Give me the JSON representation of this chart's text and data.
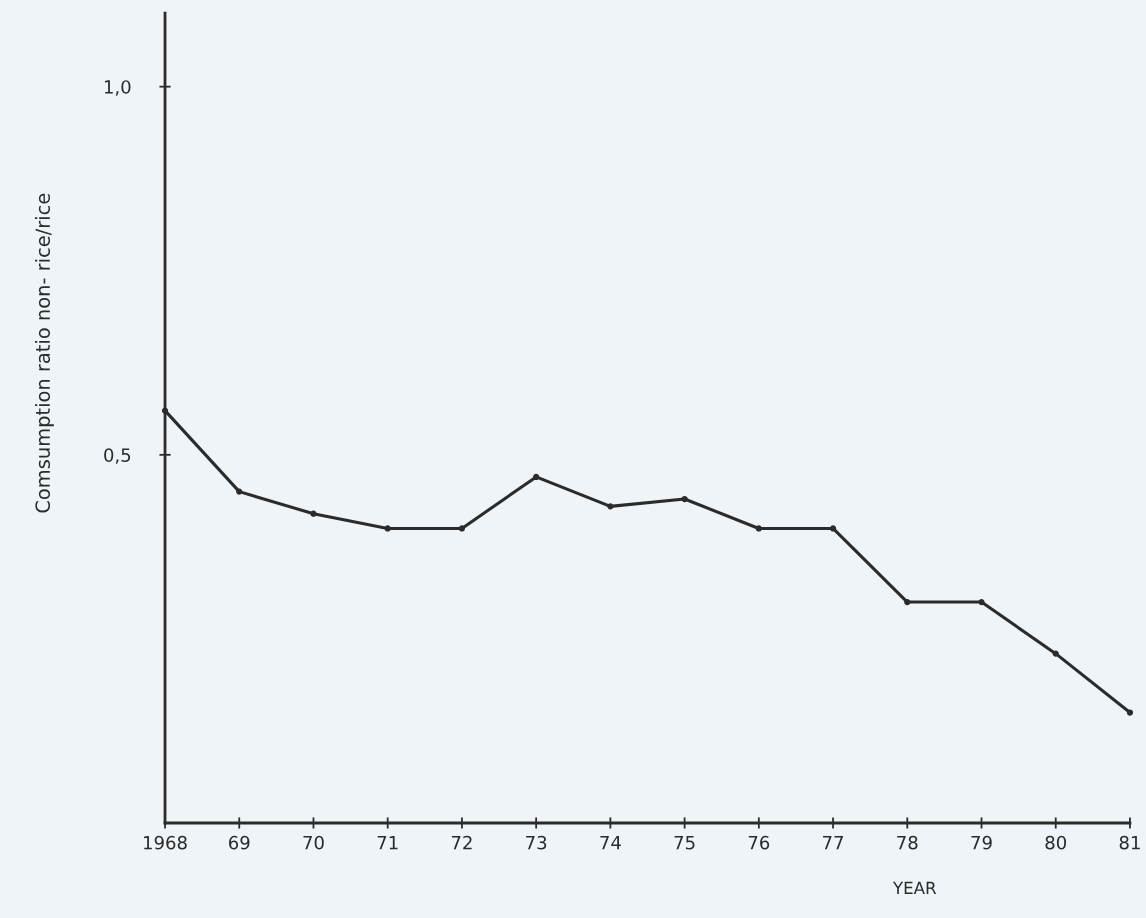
{
  "chart_data": {
    "type": "line",
    "x": [
      1968,
      1969,
      1970,
      1971,
      1972,
      1973,
      1974,
      1975,
      1976,
      1977,
      1978,
      1979,
      1980,
      1981
    ],
    "values": [
      0.56,
      0.45,
      0.42,
      0.4,
      0.4,
      0.47,
      0.43,
      0.44,
      0.4,
      0.4,
      0.3,
      0.3,
      0.23,
      0.15
    ],
    "color": "#2b2b2b",
    "marker": "circle",
    "line_style": "solid",
    "xlabel": "YEAR",
    "ylabel": "Comsumption ratio non- rice/rice",
    "xlim": [
      1968,
      1981
    ],
    "xticks": [
      1968,
      {
        "value": 1969,
        "label": "69"
      },
      {
        "value": 1970,
        "label": "70"
      },
      {
        "value": 1971,
        "label": "71"
      },
      {
        "value": 1972,
        "label": "72"
      },
      {
        "value": 1973,
        "label": "73"
      },
      {
        "value": 1974,
        "label": "74"
      },
      {
        "value": 1975,
        "label": "75"
      },
      {
        "value": 1976,
        "label": "76"
      },
      {
        "value": 1977,
        "label": "77"
      },
      {
        "value": 1978,
        "label": "78"
      },
      {
        "value": 1979,
        "label": "79"
      },
      {
        "value": 1980,
        "label": "80"
      },
      {
        "value": 1981,
        "label": "81"
      }
    ],
    "ylim": [
      0,
      1.1
    ],
    "yticks": [
      {
        "value": 0.5,
        "label": "0,5"
      },
      {
        "value": 1.0,
        "label": "1,0"
      }
    ]
  }
}
